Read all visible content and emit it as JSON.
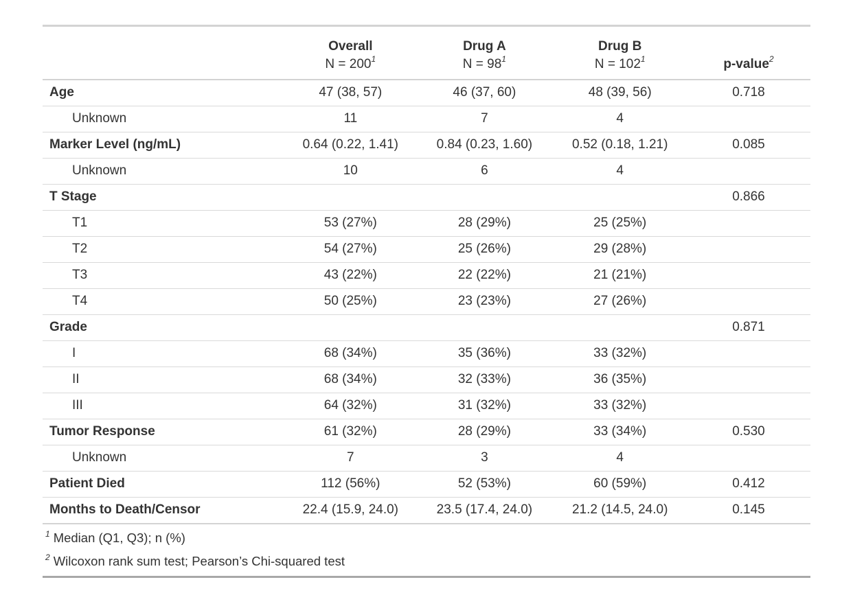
{
  "table": {
    "columns": [
      {
        "title": "Overall",
        "subtitle": "N = 200",
        "footnote_mark": "1"
      },
      {
        "title": "Drug A",
        "subtitle": "N = 98",
        "footnote_mark": "1"
      },
      {
        "title": "Drug B",
        "subtitle": "N = 102",
        "footnote_mark": "1"
      },
      {
        "title": "p-value",
        "footnote_mark": "2"
      }
    ],
    "rows": [
      {
        "label": "Age",
        "bold": true,
        "indent": false,
        "overall": "47 (38, 57)",
        "drug_a": "46 (37, 60)",
        "drug_b": "48 (39, 56)",
        "p_value": "0.718"
      },
      {
        "label": "Unknown",
        "bold": false,
        "indent": true,
        "overall": "11",
        "drug_a": "7",
        "drug_b": "4",
        "p_value": ""
      },
      {
        "label": "Marker Level (ng/mL)",
        "bold": true,
        "indent": false,
        "overall": "0.64 (0.22, 1.41)",
        "drug_a": "0.84 (0.23, 1.60)",
        "drug_b": "0.52 (0.18, 1.21)",
        "p_value": "0.085"
      },
      {
        "label": "Unknown",
        "bold": false,
        "indent": true,
        "overall": "10",
        "drug_a": "6",
        "drug_b": "4",
        "p_value": ""
      },
      {
        "label": "T Stage",
        "bold": true,
        "indent": false,
        "overall": "",
        "drug_a": "",
        "drug_b": "",
        "p_value": "0.866"
      },
      {
        "label": "T1",
        "bold": false,
        "indent": true,
        "overall": "53 (27%)",
        "drug_a": "28 (29%)",
        "drug_b": "25 (25%)",
        "p_value": ""
      },
      {
        "label": "T2",
        "bold": false,
        "indent": true,
        "overall": "54 (27%)",
        "drug_a": "25 (26%)",
        "drug_b": "29 (28%)",
        "p_value": ""
      },
      {
        "label": "T3",
        "bold": false,
        "indent": true,
        "overall": "43 (22%)",
        "drug_a": "22 (22%)",
        "drug_b": "21 (21%)",
        "p_value": ""
      },
      {
        "label": "T4",
        "bold": false,
        "indent": true,
        "overall": "50 (25%)",
        "drug_a": "23 (23%)",
        "drug_b": "27 (26%)",
        "p_value": ""
      },
      {
        "label": "Grade",
        "bold": true,
        "indent": false,
        "overall": "",
        "drug_a": "",
        "drug_b": "",
        "p_value": "0.871"
      },
      {
        "label": "I",
        "bold": false,
        "indent": true,
        "overall": "68 (34%)",
        "drug_a": "35 (36%)",
        "drug_b": "33 (32%)",
        "p_value": ""
      },
      {
        "label": "II",
        "bold": false,
        "indent": true,
        "overall": "68 (34%)",
        "drug_a": "32 (33%)",
        "drug_b": "36 (35%)",
        "p_value": ""
      },
      {
        "label": "III",
        "bold": false,
        "indent": true,
        "overall": "64 (32%)",
        "drug_a": "31 (32%)",
        "drug_b": "33 (32%)",
        "p_value": ""
      },
      {
        "label": "Tumor Response",
        "bold": true,
        "indent": false,
        "overall": "61 (32%)",
        "drug_a": "28 (29%)",
        "drug_b": "33 (34%)",
        "p_value": "0.530"
      },
      {
        "label": "Unknown",
        "bold": false,
        "indent": true,
        "overall": "7",
        "drug_a": "3",
        "drug_b": "4",
        "p_value": ""
      },
      {
        "label": "Patient Died",
        "bold": true,
        "indent": false,
        "overall": "112 (56%)",
        "drug_a": "52 (53%)",
        "drug_b": "60 (59%)",
        "p_value": "0.412"
      },
      {
        "label": "Months to Death/Censor",
        "bold": true,
        "indent": false,
        "overall": "22.4 (15.9, 24.0)",
        "drug_a": "23.5 (17.4, 24.0)",
        "drug_b": "21.2 (14.5, 24.0)",
        "p_value": "0.145"
      }
    ],
    "footnotes": [
      {
        "mark": "1",
        "text": "Median (Q1, Q3); n (%)"
      },
      {
        "mark": "2",
        "text": "Wilcoxon rank sum test; Pearson’s Chi-squared test"
      }
    ]
  },
  "colors": {
    "text": "#333333",
    "border_top": "#d3d3d3",
    "border_bottom": "#a8a8a8",
    "row_divider": "#d9d9d9"
  },
  "chart_data": {
    "type": "table",
    "title": "",
    "columns": [
      "",
      "Overall N = 200",
      "Drug A N = 98",
      "Drug B N = 102",
      "p-value"
    ],
    "rows": [
      [
        "Age",
        "47 (38, 57)",
        "46 (37, 60)",
        "48 (39, 56)",
        "0.718"
      ],
      [
        "Unknown",
        "11",
        "7",
        "4",
        ""
      ],
      [
        "Marker Level (ng/mL)",
        "0.64 (0.22, 1.41)",
        "0.84 (0.23, 1.60)",
        "0.52 (0.18, 1.21)",
        "0.085"
      ],
      [
        "Unknown",
        "10",
        "6",
        "4",
        ""
      ],
      [
        "T Stage",
        "",
        "",
        "",
        "0.866"
      ],
      [
        "T1",
        "53 (27%)",
        "28 (29%)",
        "25 (25%)",
        ""
      ],
      [
        "T2",
        "54 (27%)",
        "25 (26%)",
        "29 (28%)",
        ""
      ],
      [
        "T3",
        "43 (22%)",
        "22 (22%)",
        "21 (21%)",
        ""
      ],
      [
        "T4",
        "50 (25%)",
        "23 (23%)",
        "27 (26%)",
        ""
      ],
      [
        "Grade",
        "",
        "",
        "",
        "0.871"
      ],
      [
        "I",
        "68 (34%)",
        "35 (36%)",
        "33 (32%)",
        ""
      ],
      [
        "II",
        "68 (34%)",
        "32 (33%)",
        "36 (35%)",
        ""
      ],
      [
        "III",
        "64 (32%)",
        "31 (32%)",
        "33 (32%)",
        ""
      ],
      [
        "Tumor Response",
        "61 (32%)",
        "28 (29%)",
        "33 (34%)",
        "0.530"
      ],
      [
        "Unknown",
        "7",
        "3",
        "4",
        ""
      ],
      [
        "Patient Died",
        "112 (56%)",
        "52 (53%)",
        "60 (59%)",
        "0.412"
      ],
      [
        "Months to Death/Censor",
        "22.4 (15.9, 24.0)",
        "23.5 (17.4, 24.0)",
        "21.2 (14.5, 24.0)",
        "0.145"
      ]
    ],
    "footnotes": [
      "Median (Q1, Q3); n (%)",
      "Wilcoxon rank sum test; Pearson’s Chi-squared test"
    ]
  }
}
